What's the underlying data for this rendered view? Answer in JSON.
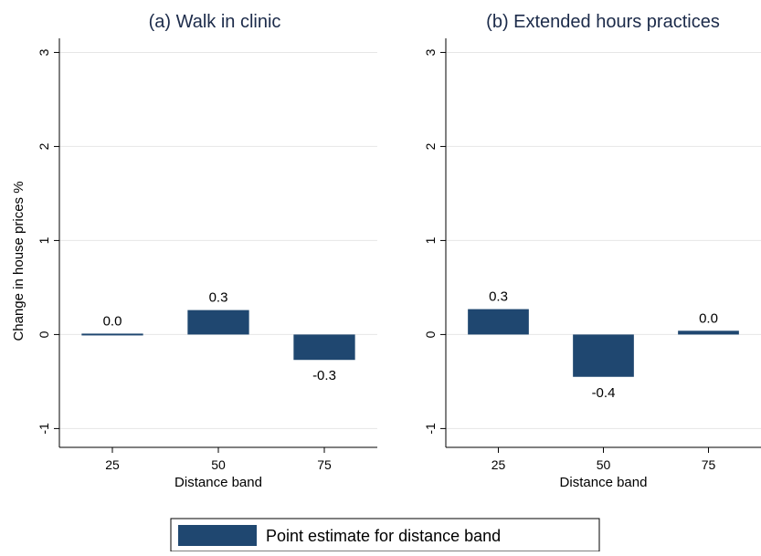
{
  "colors": {
    "bar": "#1f4770",
    "grid": "#e6e6e6",
    "axis": "#000000",
    "title": "#1c2b4a"
  },
  "legend": {
    "label": "Point estimate for distance band",
    "placement": "bottom-center"
  },
  "chart_data": [
    {
      "type": "bar",
      "title": "(a) Walk in clinic",
      "xlabel": "Distance band",
      "ylabel": "Change in house prices %",
      "categories": [
        "25",
        "50",
        "75"
      ],
      "values": [
        0.0,
        0.26,
        -0.27
      ],
      "data_labels": [
        "0.0",
        "0.3",
        "-0.3"
      ],
      "ylim": [
        -1.2,
        3.15
      ],
      "yticks": [
        -1,
        0,
        1,
        2,
        3
      ],
      "ytick_labels": [
        "-1",
        "0",
        "1",
        "2",
        "3"
      ],
      "grid": true
    },
    {
      "type": "bar",
      "title": "(b) Extended hours practices",
      "xlabel": "Distance band",
      "ylabel": "",
      "categories": [
        "25",
        "50",
        "75"
      ],
      "values": [
        0.27,
        -0.45,
        0.04
      ],
      "data_labels": [
        "0.3",
        "-0.4",
        "0.0"
      ],
      "ylim": [
        -1.2,
        3.15
      ],
      "yticks": [
        -1,
        0,
        1,
        2,
        3
      ],
      "ytick_labels": [
        "-1",
        "0",
        "1",
        "2",
        "3"
      ],
      "grid": true
    }
  ]
}
